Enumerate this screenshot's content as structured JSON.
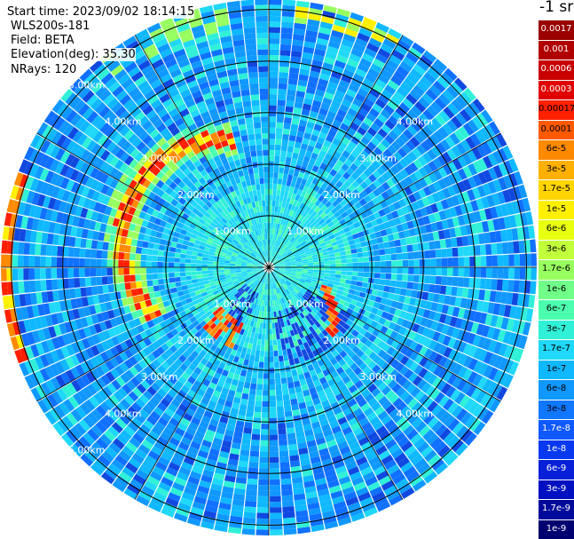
{
  "header": {
    "start_time": "Start time: 2023/09/02 18:14:15",
    "instrument": "WLS200s-181",
    "field": "Field: BETA",
    "elevation": "Elevation(deg): 35.30",
    "nrays": "NRays: 120"
  },
  "colorbar": {
    "unit_label": "-1 sr",
    "ticks": [
      "0.0017",
      "0.001",
      "0.0006",
      "0.0003",
      "0.00017",
      "0.0001",
      "6e-5",
      "3e-5",
      "1.7e-5",
      "1e-5",
      "6e-6",
      "3e-6",
      "1.7e-6",
      "1e-6",
      "6e-7",
      "3e-7",
      "1.7e-7",
      "1e-7",
      "6e-8",
      "3e-8",
      "1.7e-8",
      "1e-8",
      "6e-9",
      "3e-9",
      "1.7e-9",
      "1e-9"
    ],
    "colors": [
      "#9a0000",
      "#b00000",
      "#c80000",
      "#e00000",
      "#ff2000",
      "#ff5a00",
      "#ff8a00",
      "#ffb000",
      "#ffd400",
      "#fff000",
      "#e8ff10",
      "#c0ff3a",
      "#98ff60",
      "#70ff88",
      "#4cffb0",
      "#30f0d8",
      "#20d8f8",
      "#10b8ff",
      "#1098ff",
      "#1078ff",
      "#1058ff",
      "#0838f0",
      "#0820d8",
      "#0010c0",
      "#000a9a",
      "#000070"
    ],
    "light_text": [
      true,
      true,
      true,
      true,
      false,
      false,
      false,
      false,
      false,
      false,
      false,
      false,
      false,
      false,
      false,
      false,
      false,
      false,
      false,
      false,
      true,
      true,
      true,
      true,
      true,
      true
    ]
  },
  "chart_data": {
    "type": "heatmap",
    "projection": "polar PPI scan",
    "field": "BETA",
    "nrays": 120,
    "elevation_deg": 35.3,
    "range_rings_km": [
      1,
      2,
      3,
      4,
      5
    ],
    "ring_labels": [
      "1.00km",
      "2.00km",
      "3.00km",
      "4.00km",
      "5.00km"
    ],
    "max_range_km": 5.2,
    "dominant_value": "1e-7",
    "features": [
      {
        "description_value": "6e-5",
        "range_km": [
          2.5,
          3.3
        ],
        "azimuth_deg": [
          250,
          340
        ]
      },
      {
        "description_value": "3e-5",
        "range_km": [
          1.0,
          1.8
        ],
        "azimuth_deg": [
          110,
          135
        ]
      },
      {
        "description_value": "3e-5",
        "range_km": [
          1.2,
          1.6
        ],
        "azimuth_deg": [
          205,
          230
        ]
      },
      {
        "description_value": "3e-5",
        "range_km": [
          5.0,
          5.2
        ],
        "azimuth_deg": [
          260,
          290
        ]
      },
      {
        "description_value": "1e-5",
        "range_km": [
          4.7,
          5.2
        ],
        "azimuth_deg": [
          10,
          25
        ]
      }
    ]
  }
}
